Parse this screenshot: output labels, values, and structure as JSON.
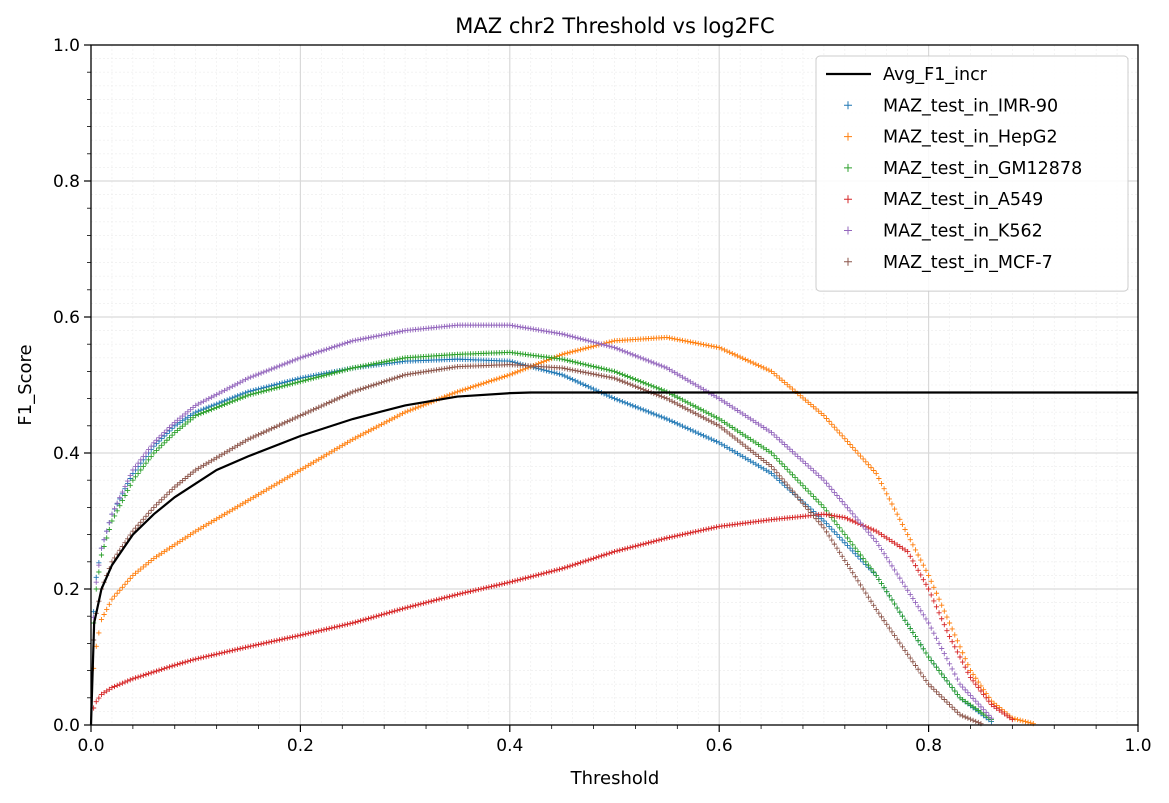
{
  "chart_data": {
    "type": "scatter",
    "title": "MAZ chr2 Threshold vs log2FC",
    "xlabel": "Threshold",
    "ylabel": "F1_Score",
    "xlim": [
      0,
      1
    ],
    "ylim": [
      0,
      1
    ],
    "x_ticks": [
      "0.0",
      "0.2",
      "0.4",
      "0.6",
      "0.8",
      "1.0"
    ],
    "y_ticks": [
      "0.0",
      "0.2",
      "0.4",
      "0.6",
      "0.8",
      "1.0"
    ],
    "grid": true,
    "minor_grid": true,
    "legend_position": "top-right",
    "series": [
      {
        "name": "Avg_F1_incr",
        "style": "line",
        "color": "#000000",
        "points": [
          [
            0,
            0.0
          ],
          [
            0.003,
            0.15
          ],
          [
            0.01,
            0.2
          ],
          [
            0.02,
            0.235
          ],
          [
            0.04,
            0.28
          ],
          [
            0.06,
            0.31
          ],
          [
            0.08,
            0.335
          ],
          [
            0.1,
            0.355
          ],
          [
            0.12,
            0.375
          ],
          [
            0.15,
            0.395
          ],
          [
            0.2,
            0.425
          ],
          [
            0.25,
            0.45
          ],
          [
            0.3,
            0.47
          ],
          [
            0.35,
            0.483
          ],
          [
            0.4,
            0.488
          ],
          [
            0.42,
            0.489
          ],
          [
            1.0,
            0.489
          ]
        ]
      },
      {
        "name": "MAZ_test_in_IMR-90",
        "style": "plus",
        "color": "#1f77b4",
        "points": [
          [
            0,
            0.0
          ],
          [
            0.003,
            0.2
          ],
          [
            0.01,
            0.26
          ],
          [
            0.02,
            0.31
          ],
          [
            0.04,
            0.37
          ],
          [
            0.06,
            0.41
          ],
          [
            0.08,
            0.44
          ],
          [
            0.1,
            0.46
          ],
          [
            0.15,
            0.49
          ],
          [
            0.2,
            0.51
          ],
          [
            0.25,
            0.525
          ],
          [
            0.3,
            0.535
          ],
          [
            0.35,
            0.538
          ],
          [
            0.4,
            0.535
          ],
          [
            0.45,
            0.515
          ],
          [
            0.5,
            0.48
          ],
          [
            0.55,
            0.45
          ],
          [
            0.6,
            0.415
          ],
          [
            0.65,
            0.37
          ],
          [
            0.7,
            0.3
          ],
          [
            0.75,
            0.22
          ],
          [
            0.8,
            0.1
          ],
          [
            0.83,
            0.04
          ],
          [
            0.86,
            0.005
          ]
        ]
      },
      {
        "name": "MAZ_test_in_HepG2",
        "style": "plus",
        "color": "#ff7f0e",
        "points": [
          [
            0,
            0.0
          ],
          [
            0.003,
            0.1
          ],
          [
            0.01,
            0.155
          ],
          [
            0.02,
            0.185
          ],
          [
            0.04,
            0.22
          ],
          [
            0.06,
            0.245
          ],
          [
            0.08,
            0.265
          ],
          [
            0.1,
            0.285
          ],
          [
            0.15,
            0.33
          ],
          [
            0.2,
            0.375
          ],
          [
            0.25,
            0.42
          ],
          [
            0.3,
            0.46
          ],
          [
            0.35,
            0.49
          ],
          [
            0.4,
            0.515
          ],
          [
            0.45,
            0.545
          ],
          [
            0.5,
            0.565
          ],
          [
            0.55,
            0.57
          ],
          [
            0.6,
            0.555
          ],
          [
            0.65,
            0.52
          ],
          [
            0.7,
            0.455
          ],
          [
            0.75,
            0.37
          ],
          [
            0.8,
            0.22
          ],
          [
            0.82,
            0.15
          ],
          [
            0.84,
            0.08
          ],
          [
            0.86,
            0.035
          ],
          [
            0.88,
            0.01
          ],
          [
            0.9,
            0.002
          ]
        ]
      },
      {
        "name": "MAZ_test_in_GM12878",
        "style": "plus",
        "color": "#2ca02c",
        "points": [
          [
            0,
            0.0
          ],
          [
            0.003,
            0.18
          ],
          [
            0.01,
            0.25
          ],
          [
            0.02,
            0.3
          ],
          [
            0.04,
            0.36
          ],
          [
            0.06,
            0.4
          ],
          [
            0.08,
            0.43
          ],
          [
            0.1,
            0.455
          ],
          [
            0.15,
            0.485
          ],
          [
            0.2,
            0.505
          ],
          [
            0.25,
            0.525
          ],
          [
            0.3,
            0.54
          ],
          [
            0.35,
            0.545
          ],
          [
            0.4,
            0.548
          ],
          [
            0.45,
            0.538
          ],
          [
            0.5,
            0.52
          ],
          [
            0.55,
            0.49
          ],
          [
            0.6,
            0.45
          ],
          [
            0.65,
            0.4
          ],
          [
            0.7,
            0.32
          ],
          [
            0.75,
            0.22
          ],
          [
            0.8,
            0.1
          ],
          [
            0.83,
            0.04
          ],
          [
            0.86,
            0.008
          ]
        ]
      },
      {
        "name": "MAZ_test_in_A549",
        "style": "plus",
        "color": "#d62728",
        "points": [
          [
            0,
            0.0
          ],
          [
            0.003,
            0.03
          ],
          [
            0.01,
            0.045
          ],
          [
            0.02,
            0.055
          ],
          [
            0.04,
            0.068
          ],
          [
            0.06,
            0.078
          ],
          [
            0.08,
            0.088
          ],
          [
            0.1,
            0.097
          ],
          [
            0.15,
            0.115
          ],
          [
            0.2,
            0.132
          ],
          [
            0.25,
            0.15
          ],
          [
            0.3,
            0.172
          ],
          [
            0.35,
            0.192
          ],
          [
            0.4,
            0.21
          ],
          [
            0.45,
            0.23
          ],
          [
            0.5,
            0.255
          ],
          [
            0.55,
            0.275
          ],
          [
            0.6,
            0.292
          ],
          [
            0.65,
            0.302
          ],
          [
            0.7,
            0.31
          ],
          [
            0.72,
            0.305
          ],
          [
            0.75,
            0.285
          ],
          [
            0.78,
            0.255
          ],
          [
            0.8,
            0.2
          ],
          [
            0.82,
            0.13
          ],
          [
            0.84,
            0.07
          ],
          [
            0.86,
            0.03
          ],
          [
            0.88,
            0.008
          ]
        ]
      },
      {
        "name": "MAZ_test_in_K562",
        "style": "plus",
        "color": "#9467bd",
        "points": [
          [
            0,
            0.0
          ],
          [
            0.003,
            0.19
          ],
          [
            0.01,
            0.26
          ],
          [
            0.02,
            0.31
          ],
          [
            0.04,
            0.375
          ],
          [
            0.06,
            0.415
          ],
          [
            0.08,
            0.445
          ],
          [
            0.1,
            0.47
          ],
          [
            0.15,
            0.51
          ],
          [
            0.2,
            0.54
          ],
          [
            0.25,
            0.565
          ],
          [
            0.3,
            0.58
          ],
          [
            0.35,
            0.588
          ],
          [
            0.4,
            0.588
          ],
          [
            0.45,
            0.575
          ],
          [
            0.5,
            0.555
          ],
          [
            0.55,
            0.525
          ],
          [
            0.6,
            0.48
          ],
          [
            0.65,
            0.43
          ],
          [
            0.7,
            0.36
          ],
          [
            0.75,
            0.27
          ],
          [
            0.8,
            0.15
          ],
          [
            0.83,
            0.06
          ],
          [
            0.86,
            0.01
          ]
        ]
      },
      {
        "name": "MAZ_test_in_MCF-7",
        "style": "plus",
        "color": "#8c564b",
        "points": [
          [
            0,
            0.0
          ],
          [
            0.003,
            0.15
          ],
          [
            0.01,
            0.2
          ],
          [
            0.02,
            0.24
          ],
          [
            0.04,
            0.285
          ],
          [
            0.06,
            0.32
          ],
          [
            0.08,
            0.35
          ],
          [
            0.1,
            0.375
          ],
          [
            0.15,
            0.42
          ],
          [
            0.2,
            0.455
          ],
          [
            0.25,
            0.49
          ],
          [
            0.3,
            0.515
          ],
          [
            0.35,
            0.527
          ],
          [
            0.4,
            0.53
          ],
          [
            0.45,
            0.525
          ],
          [
            0.5,
            0.51
          ],
          [
            0.55,
            0.48
          ],
          [
            0.6,
            0.44
          ],
          [
            0.65,
            0.38
          ],
          [
            0.7,
            0.29
          ],
          [
            0.75,
            0.17
          ],
          [
            0.8,
            0.06
          ],
          [
            0.83,
            0.015
          ],
          [
            0.85,
            0.002
          ]
        ]
      }
    ]
  }
}
